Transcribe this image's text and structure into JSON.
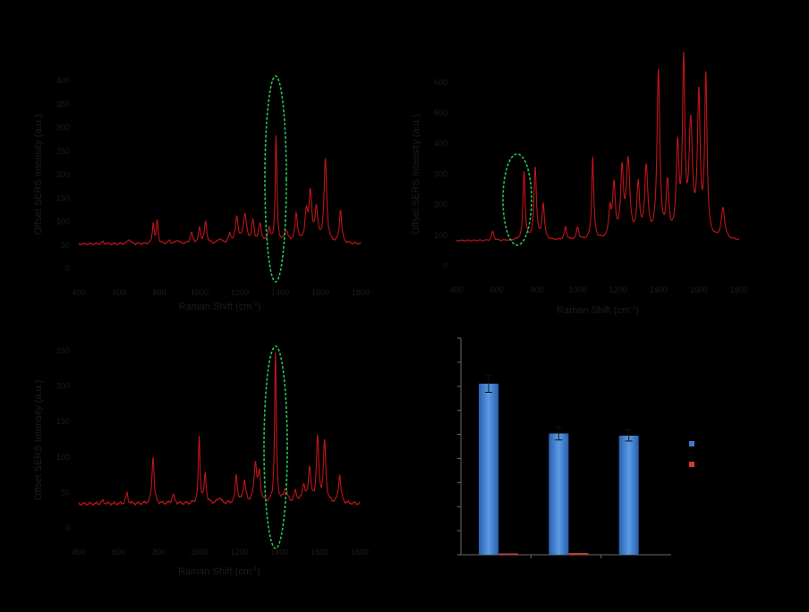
{
  "colors": {
    "background": "#000000",
    "spectrum": "#c0141a",
    "highlight": "#28c45a",
    "bar_blue": "#3a7cd0",
    "bar_red": "#d03b30",
    "axis_text": "#1c1c1c"
  },
  "chart_data": [
    {
      "type": "line",
      "panel": "top-left",
      "xlabel": "Raman Shift (cm",
      "xlabel_sup": "-1",
      "xlabel_close": ")",
      "ylabel": "Offset SERS Intensity (a.u.)",
      "xlim": [
        400,
        1800
      ],
      "ylim": [
        0,
        400
      ],
      "xticks": [
        "400",
        "600",
        "800",
        "1000",
        "1200",
        "1400",
        "1600",
        "1800"
      ],
      "yticks": [
        "0",
        "50",
        "100",
        "150",
        "200",
        "250",
        "300",
        "350",
        "400"
      ],
      "highlight_x": 1380,
      "baseline": 52,
      "peaks": [
        [
          520,
          4,
          8
        ],
        [
          650,
          10,
          8
        ],
        [
          770,
          45,
          5
        ],
        [
          790,
          48,
          5
        ],
        [
          850,
          6,
          8
        ],
        [
          890,
          8,
          8
        ],
        [
          960,
          22,
          8
        ],
        [
          1000,
          33,
          6
        ],
        [
          1030,
          45,
          7
        ],
        [
          1100,
          10,
          10
        ],
        [
          1150,
          18,
          8
        ],
        [
          1185,
          55,
          8
        ],
        [
          1225,
          60,
          10
        ],
        [
          1265,
          45,
          7
        ],
        [
          1300,
          40,
          8
        ],
        [
          1345,
          30,
          7
        ],
        [
          1380,
          225,
          5
        ],
        [
          1430,
          25,
          10
        ],
        [
          1480,
          60,
          8
        ],
        [
          1530,
          60,
          8
        ],
        [
          1550,
          105,
          8
        ],
        [
          1580,
          70,
          8
        ],
        [
          1625,
          175,
          8
        ],
        [
          1700,
          70,
          7
        ]
      ]
    },
    {
      "type": "line",
      "panel": "top-right",
      "xlabel": "Raman Shift (cm",
      "xlabel_sup": "-1",
      "xlabel_close": ")",
      "ylabel": "Offset SERS Intensity (a.u.)",
      "xlim": [
        400,
        1800
      ],
      "ylim": [
        0,
        600
      ],
      "xticks": [
        "400",
        "600",
        "800",
        "1000",
        "1200",
        "1400",
        "1600",
        "1800"
      ],
      "yticks": [
        "0",
        "100",
        "200",
        "300",
        "400",
        "500",
        "600"
      ],
      "highlight_x": 730,
      "baseline": 82,
      "peaks": [
        [
          580,
          30,
          6
        ],
        [
          735,
          225,
          6
        ],
        [
          790,
          235,
          7
        ],
        [
          830,
          115,
          7
        ],
        [
          940,
          40,
          7
        ],
        [
          1000,
          40,
          7
        ],
        [
          1075,
          270,
          6
        ],
        [
          1160,
          90,
          7
        ],
        [
          1180,
          170,
          8
        ],
        [
          1220,
          220,
          8
        ],
        [
          1250,
          250,
          10
        ],
        [
          1300,
          170,
          8
        ],
        [
          1340,
          230,
          9
        ],
        [
          1400,
          545,
          8
        ],
        [
          1445,
          170,
          8
        ],
        [
          1495,
          290,
          8
        ],
        [
          1525,
          560,
          7
        ],
        [
          1560,
          360,
          10
        ],
        [
          1600,
          455,
          8
        ],
        [
          1635,
          520,
          7
        ],
        [
          1720,
          100,
          10
        ]
      ]
    },
    {
      "type": "line",
      "panel": "bottom-left",
      "xlabel": "Raman Shift (cm",
      "xlabel_sup": "-1",
      "xlabel_close": ")",
      "ylabel": "Offset SERS Intensity (a.u.)",
      "xlim": [
        400,
        1800
      ],
      "ylim": [
        0,
        250
      ],
      "xticks": [
        "400",
        "600",
        "800",
        "1000",
        "1200",
        "1400",
        "1600",
        "1800"
      ],
      "yticks": [
        "0",
        "50",
        "100",
        "150",
        "200",
        "250"
      ],
      "highlight_x": 1380,
      "baseline": 34,
      "peaks": [
        [
          520,
          4,
          8
        ],
        [
          640,
          15,
          6
        ],
        [
          770,
          68,
          6
        ],
        [
          870,
          12,
          8
        ],
        [
          1000,
          95,
          5
        ],
        [
          1030,
          40,
          6
        ],
        [
          1100,
          8,
          10
        ],
        [
          1185,
          40,
          6
        ],
        [
          1225,
          30,
          8
        ],
        [
          1280,
          55,
          8
        ],
        [
          1300,
          40,
          7
        ],
        [
          1380,
          210,
          5
        ],
        [
          1430,
          20,
          10
        ],
        [
          1480,
          15,
          8
        ],
        [
          1520,
          25,
          8
        ],
        [
          1550,
          50,
          7
        ],
        [
          1590,
          90,
          7
        ],
        [
          1625,
          85,
          7
        ],
        [
          1700,
          40,
          7
        ]
      ]
    },
    {
      "type": "bar",
      "panel": "bottom-right",
      "groups": 3,
      "ylim": [
        0,
        1
      ],
      "series": [
        {
          "color": "#3a7cd0",
          "values": [
            0.79,
            0.56,
            0.55
          ],
          "errors": [
            0.04,
            0.03,
            0.025
          ]
        },
        {
          "color": "#d03b30",
          "values": [
            0.006,
            0.008,
            0.0
          ],
          "errors": [
            0.0,
            0.0,
            0.0
          ]
        }
      ]
    }
  ]
}
